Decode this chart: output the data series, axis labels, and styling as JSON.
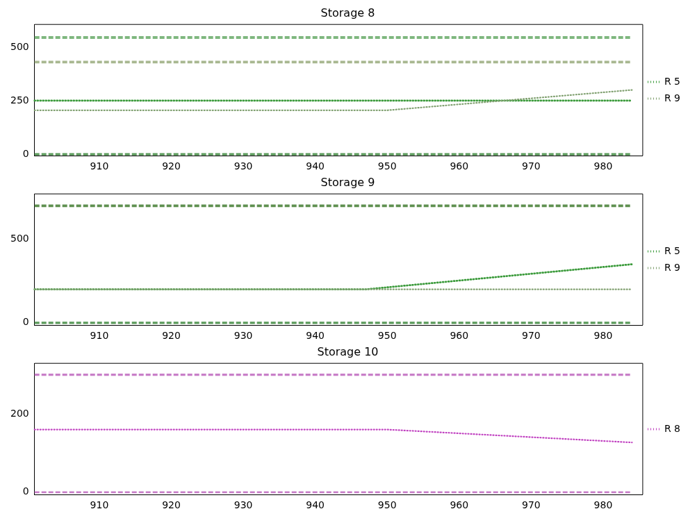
{
  "chart_data": [
    {
      "type": "line",
      "title": "Storage 8",
      "xlim": [
        901,
        985.5
      ],
      "xticks": [
        910,
        920,
        930,
        940,
        950,
        960,
        970,
        980
      ],
      "ylim": [
        -7,
        606
      ],
      "yticks": [
        0,
        250,
        500
      ],
      "grid": false,
      "legend": "right",
      "series": [
        {
          "color": "#7fb77f",
          "x": [
            901,
            984
          ],
          "values": [
            545,
            545
          ],
          "line_style": "dashed"
        },
        {
          "color": "#a8b890",
          "x": [
            901,
            984
          ],
          "values": [
            430,
            430
          ],
          "line_style": "dashed"
        },
        {
          "color": "#5a9a5a",
          "x": [
            901,
            984
          ],
          "values": [
            0,
            0
          ],
          "line_style": "dashed"
        },
        {
          "name": "R 5",
          "color": "#3a9a3a",
          "x": [
            901,
            950,
            984
          ],
          "values": [
            250,
            250,
            250
          ],
          "line_style": "dotted"
        },
        {
          "name": "R 9",
          "color": "#80a070",
          "x": [
            901,
            950,
            984
          ],
          "values": [
            205,
            205,
            300
          ],
          "line_style": "dotted"
        }
      ]
    },
    {
      "type": "line",
      "title": "Storage 9",
      "xlim": [
        901,
        985.5
      ],
      "xticks": [
        910,
        920,
        930,
        940,
        950,
        960,
        970,
        980
      ],
      "ylim": [
        -14,
        771
      ],
      "yticks": [
        0,
        500
      ],
      "grid": false,
      "legend": "right",
      "series": [
        {
          "color": "#5f9050",
          "x": [
            901,
            984
          ],
          "values": [
            700,
            700
          ],
          "line_style": "dashed"
        },
        {
          "color": "#5a9a5a",
          "x": [
            901,
            984
          ],
          "values": [
            0,
            0
          ],
          "line_style": "dashed"
        },
        {
          "name": "R 5",
          "color": "#3a9a3a",
          "x": [
            901,
            947,
            984
          ],
          "values": [
            200,
            200,
            350
          ],
          "line_style": "dotted"
        },
        {
          "name": "R 9",
          "color": "#80a070",
          "x": [
            901,
            947,
            984
          ],
          "values": [
            200,
            200,
            200
          ],
          "line_style": "dotted"
        }
      ]
    },
    {
      "type": "line",
      "title": "Storage 10",
      "xlim": [
        901,
        985.5
      ],
      "xticks": [
        910,
        920,
        930,
        940,
        950,
        960,
        970,
        980
      ],
      "ylim": [
        -6,
        329
      ],
      "yticks": [
        0,
        200
      ],
      "grid": false,
      "legend": "right",
      "series": [
        {
          "color": "#c87fc8",
          "x": [
            901,
            984
          ],
          "values": [
            300,
            300
          ],
          "line_style": "dashed"
        },
        {
          "color": "#c87fc8",
          "x": [
            901,
            984
          ],
          "values": [
            0,
            0
          ],
          "line_style": "dashed"
        },
        {
          "name": "R 8",
          "color": "#c040c0",
          "x": [
            901,
            950,
            984
          ],
          "values": [
            160,
            160,
            127
          ],
          "line_style": "dotted"
        }
      ]
    }
  ]
}
